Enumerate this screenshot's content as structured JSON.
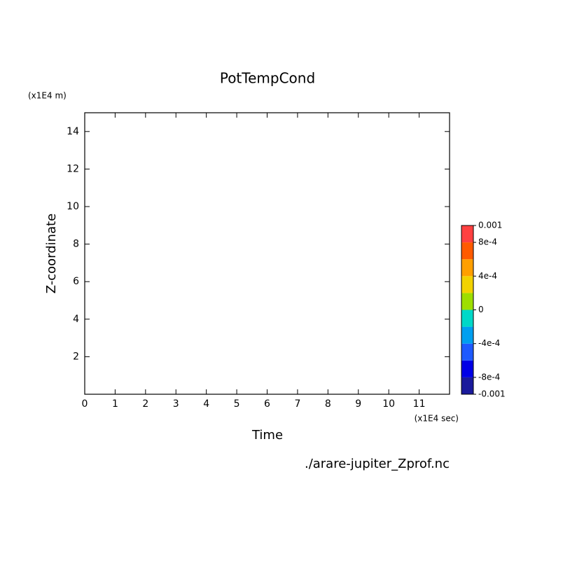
{
  "chart_data": {
    "type": "contour",
    "title": "PotTempCond",
    "x_label": "Time",
    "y_label": "Z-coordinate",
    "x_unit": "(x1E4 sec)",
    "y_unit": "(x1E4 m)",
    "footnote": "./arare-jupiter_Zprof.nc",
    "xlim": [
      0,
      12
    ],
    "xticks": [
      0,
      1,
      2,
      3,
      4,
      5,
      6,
      7,
      8,
      9,
      10,
      11
    ],
    "ylim": [
      0,
      15
    ],
    "yticks": [
      2,
      4,
      6,
      8,
      10,
      12,
      14
    ],
    "colorbar": {
      "levels": [
        -0.001,
        -0.0008,
        -0.0006,
        -0.0004,
        -0.0002,
        0,
        0.0002,
        0.0004,
        0.0006,
        0.0008,
        0.001
      ],
      "colors": [
        "#1a1a9c",
        "#0000e6",
        "#1e5aff",
        "#009ff0",
        "#00d8c8",
        "#9ede00",
        "#f2d200",
        "#ff9f00",
        "#ff5a00",
        "#ff4040"
      ],
      "ticks": [
        -0.001,
        {
          "value": -0.0008,
          "label": "-8e-4"
        },
        {
          "value": -0.0004,
          "label": "-4e-4"
        },
        0,
        {
          "value": 0.0004,
          "label": "4e-4"
        },
        {
          "value": 0.0008,
          "label": "8e-4"
        },
        0.001
      ]
    }
  }
}
